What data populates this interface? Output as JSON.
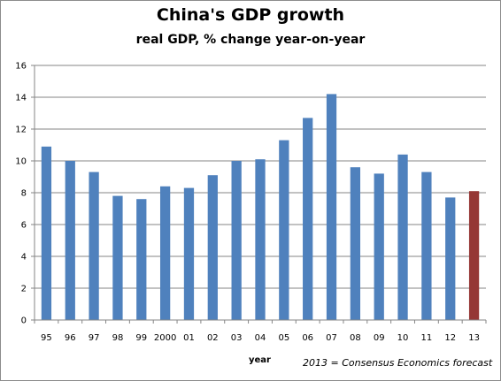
{
  "chart_data": {
    "type": "bar",
    "title": "China's GDP growth",
    "subtitle": "real GDP, % change year-on-year",
    "xlabel": "year",
    "ylabel": "",
    "note": "2013 = Consensus Economics forecast",
    "categories": [
      "95",
      "96",
      "97",
      "98",
      "99",
      "2000",
      "01",
      "02",
      "03",
      "04",
      "05",
      "06",
      "07",
      "08",
      "09",
      "10",
      "11",
      "12",
      "13"
    ],
    "values": [
      10.9,
      10.0,
      9.3,
      7.8,
      7.6,
      8.4,
      8.3,
      9.1,
      10.0,
      10.1,
      11.3,
      12.7,
      14.2,
      9.6,
      9.2,
      10.4,
      9.3,
      7.7,
      8.1
    ],
    "ylim": [
      0,
      16
    ],
    "yticks": [
      0,
      2,
      4,
      6,
      8,
      10,
      12,
      14,
      16
    ],
    "grid": true,
    "legend": "none",
    "bar_color": "#4f81bd",
    "highlight_color": "#953735",
    "highlight_index": 18
  }
}
